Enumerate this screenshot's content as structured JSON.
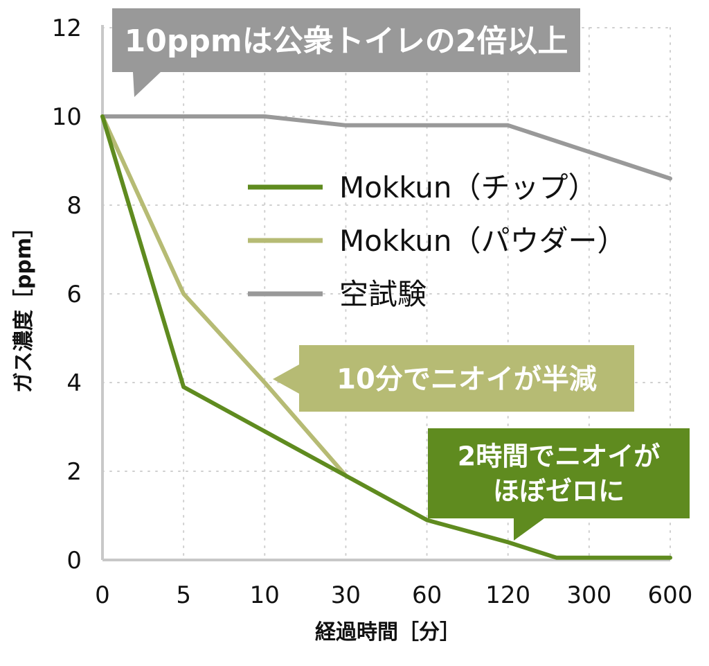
{
  "chart_data": {
    "type": "line",
    "title": "",
    "xlabel": "経過時間［分］",
    "ylabel": "ガス濃度［ppm］",
    "categories": [
      "0",
      "5",
      "10",
      "30",
      "60",
      "120",
      "300",
      "600"
    ],
    "ylim": [
      0,
      12
    ],
    "yticks": [
      0,
      2,
      4,
      6,
      8,
      10,
      12
    ],
    "grid": true,
    "legend_position": "center-right",
    "series": [
      {
        "name": "Mokkun（チップ）",
        "color": "#5f8b1f",
        "x": [
          0,
          1,
          2,
          3,
          4,
          5,
          5.6,
          6,
          7
        ],
        "values": [
          10,
          3.9,
          2.9,
          1.9,
          0.9,
          0.4,
          0.05,
          0.05,
          0.05
        ]
      },
      {
        "name": "Mokkun（パウダー）",
        "color": "#b6bb74",
        "x": [
          0,
          1,
          2,
          3
        ],
        "values": [
          10,
          6.0,
          4.0,
          1.9
        ]
      },
      {
        "name": "空試験",
        "color": "#999999",
        "x": [
          0,
          1,
          2,
          3,
          4,
          5,
          6,
          7
        ],
        "values": [
          10,
          10,
          10,
          9.8,
          9.8,
          9.8,
          9.2,
          8.6
        ]
      }
    ],
    "annotations": [
      {
        "id": "blank",
        "lines": [
          "10ppmは公衆トイレの2倍以上"
        ],
        "color": "#999999"
      },
      {
        "id": "powder",
        "lines": [
          "10分でニオイが半減"
        ],
        "color": "#b6bb74"
      },
      {
        "id": "chip",
        "lines": [
          "2時間でニオイが",
          "ほぼゼロに"
        ],
        "color": "#5f8b1f"
      }
    ]
  }
}
